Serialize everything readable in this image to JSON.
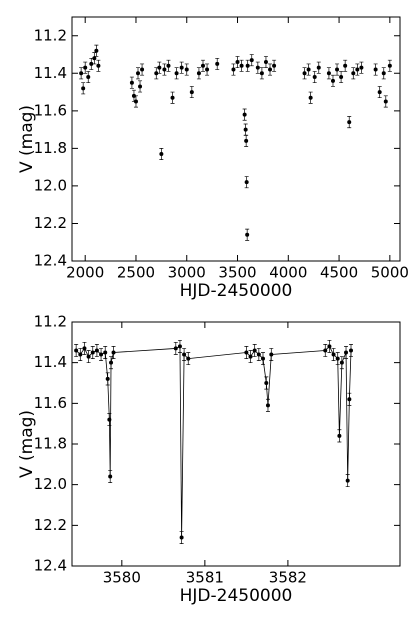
{
  "chart_data": [
    {
      "type": "scatter",
      "xlabel": "HJD-2450000",
      "ylabel": "V (mag)",
      "color": "#000000",
      "line": false,
      "inverted_y": true,
      "xlim": [
        1870,
        5100
      ],
      "ylim": [
        11.1,
        12.4
      ],
      "xticks": [
        2000,
        2500,
        3000,
        3500,
        4000,
        4500,
        5000
      ],
      "yticks": [
        {
          "value": 11.2,
          "label": "11.2"
        },
        {
          "value": 11.4,
          "label": "11.4"
        },
        {
          "value": 11.6,
          "label": "11.6"
        },
        {
          "value": 11.8,
          "label": "11.8"
        },
        {
          "value": 12.0,
          "label": "12.0"
        },
        {
          "value": 12.2,
          "label": "12.2"
        },
        {
          "value": 12.4,
          "label": "12.4"
        }
      ],
      "error": 0.03,
      "x": [
        1960,
        1980,
        2000,
        2030,
        2060,
        2090,
        2110,
        2130,
        2460,
        2480,
        2500,
        2520,
        2540,
        2560,
        2700,
        2730,
        2750,
        2780,
        2820,
        2860,
        2900,
        2950,
        3000,
        3050,
        3120,
        3160,
        3200,
        3300,
        3460,
        3500,
        3540,
        3570,
        3580,
        3585,
        3590,
        3595,
        3600,
        3640,
        3700,
        3740,
        3780,
        3820,
        3860,
        4160,
        4200,
        4220,
        4260,
        4300,
        4400,
        4440,
        4480,
        4520,
        4560,
        4600,
        4640,
        4680,
        4720,
        4860,
        4900,
        4940,
        4960,
        5000
      ],
      "values": [
        11.4,
        11.48,
        11.37,
        11.42,
        11.35,
        11.32,
        11.28,
        11.36,
        11.45,
        11.52,
        11.55,
        11.4,
        11.47,
        11.38,
        11.4,
        11.37,
        11.83,
        11.38,
        11.36,
        11.53,
        11.4,
        11.37,
        11.38,
        11.5,
        11.4,
        11.36,
        11.38,
        11.35,
        11.38,
        11.34,
        11.36,
        11.62,
        11.7,
        11.76,
        11.98,
        12.26,
        11.36,
        11.33,
        11.37,
        11.4,
        11.34,
        11.38,
        11.36,
        11.4,
        11.38,
        11.53,
        11.42,
        11.37,
        11.4,
        11.44,
        11.38,
        11.42,
        11.36,
        11.66,
        11.4,
        11.38,
        11.37,
        11.38,
        11.5,
        11.4,
        11.55,
        11.36
      ]
    },
    {
      "type": "scatter",
      "xlabel": "HJD-2450000",
      "ylabel": "V (mag)",
      "color": "#000000",
      "line": true,
      "inverted_y": true,
      "xlim": [
        3579.4,
        3583.35
      ],
      "ylim": [
        11.2,
        12.4
      ],
      "xticks": [
        3580,
        3581,
        3582
      ],
      "yticks": [
        {
          "value": 11.2,
          "label": "11.2"
        },
        {
          "value": 11.4,
          "label": "11.4"
        },
        {
          "value": 11.6,
          "label": "11.6"
        },
        {
          "value": 11.8,
          "label": "11.8"
        },
        {
          "value": 12.0,
          "label": "12.0"
        },
        {
          "value": 12.2,
          "label": "12.2"
        },
        {
          "value": 12.4,
          "label": "12.4"
        }
      ],
      "error": 0.03,
      "x": [
        3579.45,
        3579.5,
        3579.55,
        3579.6,
        3579.65,
        3579.7,
        3579.75,
        3579.8,
        3579.83,
        3579.85,
        3579.86,
        3579.87,
        3579.9,
        3580.65,
        3580.7,
        3580.72,
        3580.75,
        3580.8,
        3581.5,
        3581.55,
        3581.6,
        3581.65,
        3581.7,
        3581.74,
        3581.76,
        3581.8,
        3582.45,
        3582.5,
        3582.55,
        3582.6,
        3582.62,
        3582.65,
        3582.7,
        3582.72,
        3582.74,
        3582.76
      ],
      "values": [
        11.34,
        11.36,
        11.33,
        11.37,
        11.35,
        11.34,
        11.36,
        11.35,
        11.48,
        11.68,
        11.96,
        11.4,
        11.35,
        11.33,
        11.32,
        12.26,
        11.36,
        11.38,
        11.35,
        11.37,
        11.34,
        11.36,
        11.38,
        11.5,
        11.61,
        11.36,
        11.34,
        11.32,
        11.36,
        11.38,
        11.76,
        11.4,
        11.35,
        11.98,
        11.58,
        11.34
      ]
    }
  ]
}
